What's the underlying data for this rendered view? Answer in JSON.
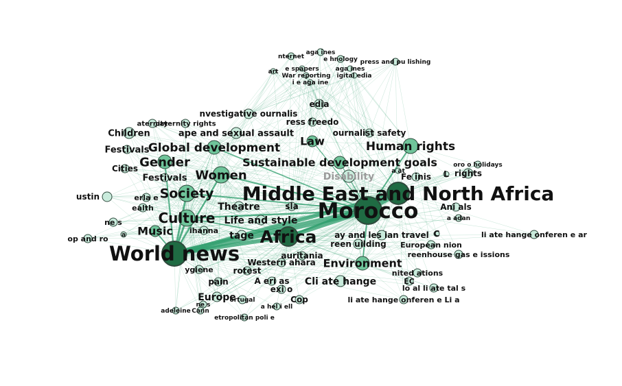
{
  "colors": {
    "edge": "#2e9d6c",
    "node_fill_major": "#1f6b43",
    "node_fill_mid": "#6fc49a",
    "node_fill_minor": "#c9ebdc",
    "node_stroke": "#2f4a3d",
    "label": "#111111",
    "label_muted": "#9a9a9a"
  },
  "nodes": [
    {
      "id": "morocco",
      "label": "Morocco",
      "weight": 100
    },
    {
      "id": "world_news",
      "label": "World news",
      "weight": 80
    },
    {
      "id": "mena",
      "label": "Middle East and North Africa",
      "weight": 70
    },
    {
      "id": "africa",
      "label": "Africa",
      "weight": 62
    },
    {
      "id": "culture",
      "label": "Culture",
      "weight": 45
    },
    {
      "id": "society",
      "label": "Society",
      "weight": 42
    },
    {
      "id": "women",
      "label": "Women",
      "weight": 40
    },
    {
      "id": "gender",
      "label": "Gender",
      "weight": 38
    },
    {
      "id": "global_dev",
      "label": "Global development",
      "weight": 36
    },
    {
      "id": "human_rights",
      "label": "Human rights",
      "weight": 36
    },
    {
      "id": "environment",
      "label": "Environment",
      "weight": 34
    },
    {
      "id": "sdg",
      "label": "Sustainable development goals",
      "weight": 32
    },
    {
      "id": "music",
      "label": "Music",
      "weight": 30
    },
    {
      "id": "law",
      "label": "Law",
      "weight": 30
    },
    {
      "id": "life_style",
      "label": "Life and style",
      "weight": 28
    },
    {
      "id": "theatre",
      "label": "Theatre",
      "weight": 26
    },
    {
      "id": "heritage",
      "label": "tage",
      "weight": 26
    },
    {
      "id": "climate_change",
      "label": "Cli   ate  hange",
      "weight": 26
    },
    {
      "id": "europe",
      "label": "Europe",
      "weight": 26
    },
    {
      "id": "disability",
      "label": "Disability",
      "weight": 24
    },
    {
      "id": "children",
      "label": "Children",
      "weight": 24
    },
    {
      "id": "rape",
      "label": "ape and sexual assault",
      "weight": 24
    },
    {
      "id": "festivals2",
      "label": "Festivals",
      "weight": 22
    },
    {
      "id": "festivals1",
      "label": "Festivals",
      "weight": 22
    },
    {
      "id": "cities",
      "label": "Cities",
      "weight": 22
    },
    {
      "id": "investigative",
      "label": "nvestigative  ournalis",
      "weight": 22
    },
    {
      "id": "media",
      "label": "edia",
      "weight": 22
    },
    {
      "id": "press_freedom",
      "label": "ress freedo",
      "weight": 22
    },
    {
      "id": "islam",
      "label": "sla",
      "weight": 22
    },
    {
      "id": "gay_lesbian",
      "label": "ay and les  ian travel",
      "weight": 22
    },
    {
      "id": "green_building",
      "label": "reen  uilding",
      "weight": 22
    },
    {
      "id": "mauritania",
      "label": "auritania",
      "weight": 22
    },
    {
      "id": "western_sahara",
      "label": "Western    ahara",
      "weight": 22
    },
    {
      "id": "protest",
      "label": "rotest",
      "weight": 22
    },
    {
      "id": "spain",
      "label": "pain",
      "weight": 22
    },
    {
      "id": "americas",
      "label": "A    eri  as",
      "weight": 20
    },
    {
      "id": "mexico",
      "label": "exi  o",
      "weight": 20
    },
    {
      "id": "cop",
      "label": "Cop",
      "weight": 20
    },
    {
      "id": "feminism",
      "label": "Fe   inis",
      "weight": 20
    },
    {
      "id": "rights",
      "label": "rights",
      "weight": 20
    },
    {
      "id": "animals",
      "label": "Ani   als",
      "weight": 20
    },
    {
      "id": "journalist_safety",
      "label": "ournalist safety",
      "weight": 20
    },
    {
      "id": "sustain",
      "label": "ustin",
      "weight": 18
    },
    {
      "id": "rihanna",
      "label": "ihanna",
      "weight": 18
    },
    {
      "id": "hygiene",
      "label": "ygiene",
      "weight": 18
    },
    {
      "id": "european_union",
      "label": "European    nion",
      "weight": 18
    },
    {
      "id": "greenhouse",
      "label": "reenhouse gas e    issions",
      "weight": 18
    },
    {
      "id": "united_nations",
      "label": "nited     ations",
      "weight": 18
    },
    {
      "id": "ec",
      "label": "EC",
      "weight": 18
    },
    {
      "id": "local_climate",
      "label": "lo  al    li   ate tal  s",
      "weight": 18
    },
    {
      "id": "climate_conf_lima",
      "label": "li   ate   hange   onferen  e   Li   a",
      "weight": 18
    },
    {
      "id": "climate_conf_par",
      "label": "li   ate   hange   onferen  e     ar",
      "weight": 18
    },
    {
      "id": "pop_rock",
      "label": "op and ro",
      "weight": 18
    },
    {
      "id": "health",
      "label": "ealth",
      "weight": 16
    },
    {
      "id": "erla",
      "label": "erla  e",
      "weight": 16
    },
    {
      "id": "news_s",
      "label": "ne   s",
      "weight": 16
    },
    {
      "id": "paternity_rights",
      "label": "paternity rights",
      "weight": 16
    },
    {
      "id": "maternity",
      "label": "aternity",
      "weight": 16
    },
    {
      "id": "portugal",
      "label": "ortugal",
      "weight": 16
    },
    {
      "id": "michel",
      "label": "a  hel   i   ell",
      "weight": 14
    },
    {
      "id": "news2",
      "label": "ne   s",
      "weight": 14
    },
    {
      "id": "cannes",
      "label": "Cann",
      "weight": 14
    },
    {
      "id": "madeleine",
      "label": "adeleine",
      "weight": 14
    },
    {
      "id": "metro_police",
      "label": "etropolitan poli  e",
      "weight": 14
    },
    {
      "id": "ramadan",
      "label": "a    adan",
      "weight": 14
    },
    {
      "id": "morocco_holidays",
      "label": "oro    o holidays",
      "weight": 14
    },
    {
      "id": "internet",
      "label": "nternet",
      "weight": 14
    },
    {
      "id": "magazines1",
      "label": "aga  ines",
      "weight": 14
    },
    {
      "id": "technology",
      "label": "e   hnology",
      "weight": 14
    },
    {
      "id": "press_publishing",
      "label": "press and pu   lishing",
      "weight": 14
    },
    {
      "id": "art",
      "label": "art",
      "weight": 12
    },
    {
      "id": "newspapers",
      "label": "e   spapers",
      "weight": 12
    },
    {
      "id": "magazines2",
      "label": "aga  ines",
      "weight": 12
    },
    {
      "id": "war_reporting",
      "label": "War reporting",
      "weight": 12
    },
    {
      "id": "digital_media",
      "label": "igital   edia",
      "weight": 12
    },
    {
      "id": "magazine",
      "label": "i   e    aga  ine",
      "weight": 12
    },
    {
      "id": "a_node",
      "label": "a",
      "weight": 12
    },
    {
      "id": "l_node",
      "label": "L",
      "weight": 14
    },
    {
      "id": "c_node",
      "label": "C",
      "weight": 14
    },
    {
      "id": "qatar",
      "label": "a  at",
      "weight": 12
    }
  ]
}
